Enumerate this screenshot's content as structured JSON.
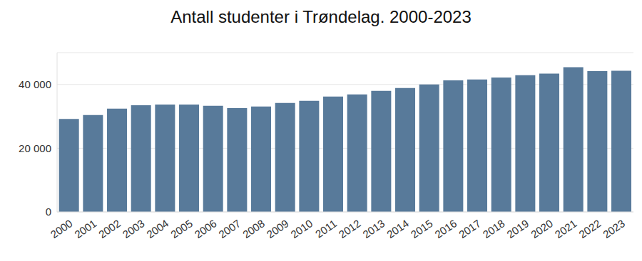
{
  "chart_data": {
    "type": "bar",
    "title": "Antall studenter i Trøndelag. 2000-2023",
    "categories": [
      "2000",
      "2001",
      "2002",
      "2003",
      "2004",
      "2005",
      "2006",
      "2007",
      "2008",
      "2009",
      "2010",
      "2011",
      "2012",
      "2013",
      "2014",
      "2015",
      "2016",
      "2017",
      "2018",
      "2019",
      "2020",
      "2021",
      "2022",
      "2023"
    ],
    "values": [
      29200,
      30400,
      32400,
      33500,
      33700,
      33700,
      33300,
      32600,
      33100,
      34200,
      34900,
      36200,
      36900,
      38000,
      38900,
      40000,
      41300,
      41600,
      42200,
      42900,
      43400,
      45400,
      44200,
      44300
    ],
    "color": "#587a9a",
    "ylim": [
      0,
      50000
    ],
    "yticks": [
      0,
      {
        "value": 20000,
        "label": "20 000"
      },
      {
        "value": 40000,
        "label": "40 000"
      }
    ],
    "grid": true
  }
}
